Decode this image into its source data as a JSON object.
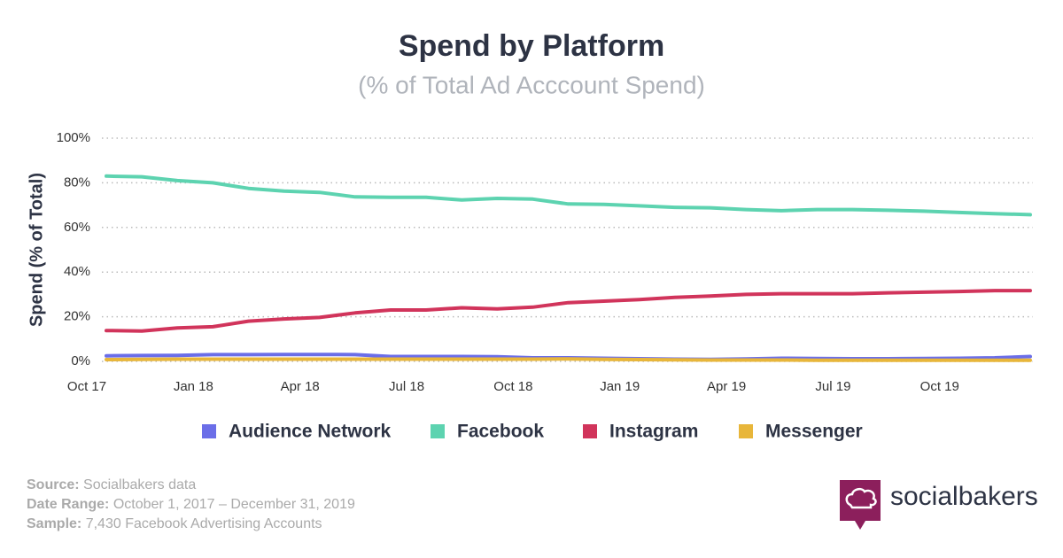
{
  "chart_data": {
    "type": "line",
    "title": "Spend by Platform",
    "subtitle": "(% of Total Ad Acccount Spend)",
    "y_label": "Spend (% of Total)",
    "categories": [
      "Oct 17",
      null,
      null,
      "Jan 18",
      null,
      null,
      "Apr 18",
      null,
      null,
      "Jul 18",
      null,
      null,
      "Oct 18",
      null,
      null,
      "Jan 19",
      null,
      null,
      "Apr 19",
      null,
      null,
      "Jul 19",
      null,
      null,
      "Oct 19",
      null,
      null
    ],
    "series": [
      {
        "name": "Audience Network",
        "color": "#6b6ee8",
        "values": [
          2.5,
          2.6,
          2.7,
          3,
          3,
          3.1,
          3.1,
          3,
          2.2,
          2.2,
          2.2,
          2.1,
          1.6,
          1.6,
          1.4,
          1.2,
          1.0,
          0.9,
          1.1,
          1.4,
          1.3,
          1.2,
          1.2,
          1.3,
          1.4,
          1.6,
          2.2
        ]
      },
      {
        "name": "Facebook",
        "color": "#5dd3b0",
        "values": [
          83,
          82.7,
          81,
          80,
          77.5,
          76.3,
          75.7,
          73.7,
          73.5,
          73.5,
          72.3,
          73,
          72.7,
          70.5,
          70.3,
          69.7,
          69,
          68.8,
          68,
          67.5,
          68,
          68,
          67.7,
          67.3,
          66.7,
          66.2,
          65.7
        ]
      },
      {
        "name": "Instagram",
        "color": "#d1345b",
        "values": [
          13.8,
          13.6,
          15,
          15.5,
          18,
          19,
          19.7,
          21.7,
          23,
          23,
          24,
          23.5,
          24.3,
          26.3,
          27,
          27.7,
          28.7,
          29.3,
          30,
          30.3,
          30.3,
          30.3,
          30.7,
          31,
          31.3,
          31.7,
          31.7
        ]
      },
      {
        "name": "Messenger",
        "color": "#e8b63a",
        "values": [
          0.8,
          0.9,
          1,
          1,
          1,
          1,
          1,
          1,
          1,
          1,
          1,
          1,
          1,
          1.1,
          0.9,
          0.8,
          0.7,
          0.6,
          0.6,
          0.6,
          0.5,
          0.5,
          0.5,
          0.5,
          0.5,
          0.5,
          0.5
        ]
      }
    ],
    "ylim": [
      0,
      100
    ],
    "yticks": [
      {
        "value": 0,
        "label": "0%"
      },
      {
        "value": 20,
        "label": "20%"
      },
      {
        "value": 40,
        "label": "40%"
      },
      {
        "value": 60,
        "label": "60%"
      },
      {
        "value": 80,
        "label": "80%"
      },
      {
        "value": 100,
        "label": "100%"
      }
    ],
    "grid": true
  },
  "footer": {
    "source": {
      "label": "Source:",
      "text": "Socialbakers data"
    },
    "date_range": {
      "label": "Date Range:",
      "text": "October 1, 2017  – December 31, 2019"
    },
    "sample": {
      "label": "Sample:",
      "text": "7,430 Facebook Advertising Accounts"
    }
  },
  "brand": "socialbakers"
}
